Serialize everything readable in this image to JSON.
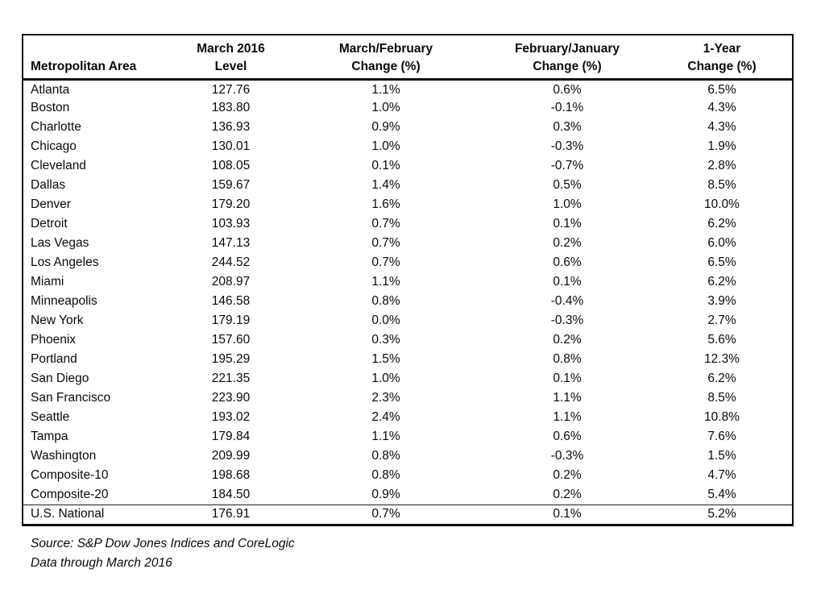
{
  "colors": {
    "background": "#ffffff",
    "border": "#0f0f0f",
    "text": "#0a0a0a"
  },
  "table": {
    "columns": [
      {
        "line1": "",
        "line2": "Metropolitan Area"
      },
      {
        "line1": "March 2016",
        "line2": "Level"
      },
      {
        "line1": "March/February",
        "line2": "Change (%)"
      },
      {
        "line1": "February/January",
        "line2": "Change (%)"
      },
      {
        "line1": "1-Year",
        "line2": "Change (%)"
      }
    ],
    "rows": [
      {
        "area": "Atlanta",
        "level": "127.76",
        "mom_change": "1.1%",
        "prior_mom_change": "0.6%",
        "one_year_change": "6.5%"
      },
      {
        "area": "Boston",
        "level": "183.80",
        "mom_change": "1.0%",
        "prior_mom_change": "-0.1%",
        "one_year_change": "4.3%"
      },
      {
        "area": "Charlotte",
        "level": "136.93",
        "mom_change": "0.9%",
        "prior_mom_change": "0.3%",
        "one_year_change": "4.3%"
      },
      {
        "area": "Chicago",
        "level": "130.01",
        "mom_change": "1.0%",
        "prior_mom_change": "-0.3%",
        "one_year_change": "1.9%"
      },
      {
        "area": "Cleveland",
        "level": "108.05",
        "mom_change": "0.1%",
        "prior_mom_change": "-0.7%",
        "one_year_change": "2.8%"
      },
      {
        "area": "Dallas",
        "level": "159.67",
        "mom_change": "1.4%",
        "prior_mom_change": "0.5%",
        "one_year_change": "8.5%"
      },
      {
        "area": "Denver",
        "level": "179.20",
        "mom_change": "1.6%",
        "prior_mom_change": "1.0%",
        "one_year_change": "10.0%"
      },
      {
        "area": "Detroit",
        "level": "103.93",
        "mom_change": "0.7%",
        "prior_mom_change": "0.1%",
        "one_year_change": "6.2%"
      },
      {
        "area": "Las Vegas",
        "level": "147.13",
        "mom_change": "0.7%",
        "prior_mom_change": "0.2%",
        "one_year_change": "6.0%"
      },
      {
        "area": "Los Angeles",
        "level": "244.52",
        "mom_change": "0.7%",
        "prior_mom_change": "0.6%",
        "one_year_change": "6.5%"
      },
      {
        "area": "Miami",
        "level": "208.97",
        "mom_change": "1.1%",
        "prior_mom_change": "0.1%",
        "one_year_change": "6.2%"
      },
      {
        "area": "Minneapolis",
        "level": "146.58",
        "mom_change": "0.8%",
        "prior_mom_change": "-0.4%",
        "one_year_change": "3.9%"
      },
      {
        "area": "New York",
        "level": "179.19",
        "mom_change": "0.0%",
        "prior_mom_change": "-0.3%",
        "one_year_change": "2.7%"
      },
      {
        "area": "Phoenix",
        "level": "157.60",
        "mom_change": "0.3%",
        "prior_mom_change": "0.2%",
        "one_year_change": "5.6%"
      },
      {
        "area": "Portland",
        "level": "195.29",
        "mom_change": "1.5%",
        "prior_mom_change": "0.8%",
        "one_year_change": "12.3%"
      },
      {
        "area": "San Diego",
        "level": "221.35",
        "mom_change": "1.0%",
        "prior_mom_change": "0.1%",
        "one_year_change": "6.2%"
      },
      {
        "area": "San Francisco",
        "level": "223.90",
        "mom_change": "2.3%",
        "prior_mom_change": "1.1%",
        "one_year_change": "8.5%"
      },
      {
        "area": "Seattle",
        "level": "193.02",
        "mom_change": "2.4%",
        "prior_mom_change": "1.1%",
        "one_year_change": "10.8%"
      },
      {
        "area": "Tampa",
        "level": "179.84",
        "mom_change": "1.1%",
        "prior_mom_change": "0.6%",
        "one_year_change": "7.6%"
      },
      {
        "area": "Washington",
        "level": "209.99",
        "mom_change": "0.8%",
        "prior_mom_change": "-0.3%",
        "one_year_change": "1.5%"
      },
      {
        "area": "Composite-10",
        "level": "198.68",
        "mom_change": "0.8%",
        "prior_mom_change": "0.2%",
        "one_year_change": "4.7%"
      },
      {
        "area": "Composite-20",
        "level": "184.50",
        "mom_change": "0.9%",
        "prior_mom_change": "0.2%",
        "one_year_change": "5.4%"
      },
      {
        "area": "U.S. National",
        "level": "176.91",
        "mom_change": "0.7%",
        "prior_mom_change": "0.1%",
        "one_year_change": "5.2%"
      }
    ]
  },
  "footer": {
    "source_line": "Source: S&P Dow Jones Indices and CoreLogic",
    "data_line": "Data through March 2016"
  }
}
